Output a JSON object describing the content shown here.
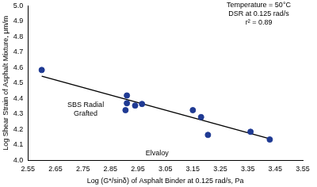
{
  "chart_data": {
    "type": "scatter",
    "x_label": "Log (G*/sinδ) of Asphalt Binder at 0.125 rad/s, Pa",
    "y_label": "Log Shear Strain of Asphalt Mixture, μm/m",
    "annotations": [
      [
        "Temperature = 50°C",
        "DSR at 0.125 rad/s",
        "r² = 0.89"
      ],
      [
        "SBS Radial",
        "Grafted"
      ],
      [
        "Elvaloy"
      ]
    ],
    "series": [
      {
        "type": "scatter",
        "color": "#1f3a93",
        "marker": "circle",
        "x": [
          2.6,
          2.91,
          2.91,
          2.905,
          2.94,
          2.965,
          3.15,
          3.18,
          3.205,
          3.36,
          3.43
        ],
        "values": [
          4.585,
          4.42,
          4.37,
          4.325,
          4.355,
          4.365,
          4.325,
          4.28,
          4.165,
          4.185,
          4.135
        ]
      },
      {
        "type": "line",
        "color": "#000000",
        "line_style": "solid",
        "x": [
          2.6,
          3.43
        ],
        "values": [
          4.545,
          4.14
        ]
      }
    ],
    "xlim": [
      2.55,
      3.55
    ],
    "xticks": [
      2.55,
      2.65,
      2.75,
      2.85,
      2.95,
      3.05,
      3.15,
      3.25,
      3.35,
      3.45,
      3.55
    ],
    "ylim": [
      4,
      5
    ],
    "yticks": [
      {
        "value": 4,
        "label": "4.0"
      },
      4.1,
      4.2,
      4.3,
      4.4,
      4.5,
      4.6,
      4.7,
      4.8,
      4.9,
      {
        "value": 5,
        "label": "5.0"
      }
    ],
    "grid": false
  }
}
